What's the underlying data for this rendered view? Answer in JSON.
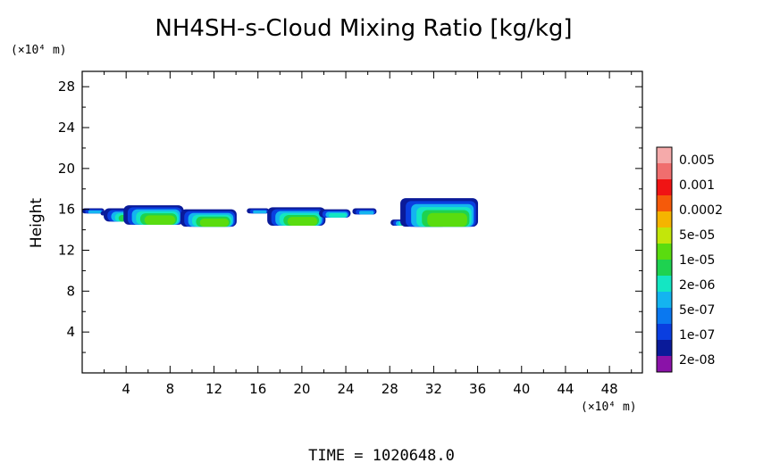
{
  "chart_data": {
    "type": "heatmap",
    "title": "NH4SH-s-Cloud Mixing Ratio [kg/kg]",
    "ylabel": "Height",
    "y_unit": "(×10⁴ m)",
    "x_unit": "(×10⁴ m)",
    "xlim": [
      0,
      51
    ],
    "ylim": [
      0,
      29.5
    ],
    "x_ticks": [
      4,
      8,
      12,
      16,
      20,
      24,
      28,
      32,
      36,
      40,
      44,
      48
    ],
    "y_ticks": [
      4,
      8,
      12,
      16,
      20,
      24,
      28
    ],
    "footer": "TIME = 1020648.0",
    "colorbar": {
      "colors": [
        "#8a12a8",
        "#0a1a99",
        "#0a3ee0",
        "#0a78f0",
        "#14b4f0",
        "#14e6c3",
        "#1ed250",
        "#5adc0f",
        "#c3e60a",
        "#f5b400",
        "#f55a0a",
        "#f01414",
        "#f06e6e",
        "#f5aaaa"
      ],
      "labels": [
        "2e-08",
        "1e-07",
        "5e-07",
        "2e-06",
        "1e-05",
        "5e-05",
        "0.0002",
        "0.001",
        "0.005"
      ]
    },
    "blobs": [
      {
        "x": 1.0,
        "y_bottom": 15.6,
        "y_top": 16.1,
        "peak": 1
      },
      {
        "x": 2.6,
        "y_bottom": 15.4,
        "y_top": 15.8,
        "peak": 1
      },
      {
        "x": 4.0,
        "y_bottom": 14.8,
        "y_top": 16.1,
        "peak": 3
      },
      {
        "x": 6.5,
        "y_bottom": 14.5,
        "y_top": 16.4,
        "peak": 4
      },
      {
        "x": 11.5,
        "y_bottom": 14.3,
        "y_top": 16.0,
        "peak": 4
      },
      {
        "x": 16.0,
        "y_bottom": 15.6,
        "y_top": 16.1,
        "peak": 1
      },
      {
        "x": 19.5,
        "y_bottom": 14.4,
        "y_top": 16.2,
        "peak": 4
      },
      {
        "x": 23.0,
        "y_bottom": 15.2,
        "y_top": 16.0,
        "peak": 2
      },
      {
        "x": 25.7,
        "y_bottom": 15.5,
        "y_top": 16.1,
        "peak": 1
      },
      {
        "x": 29.5,
        "y_bottom": 14.4,
        "y_top": 15.0,
        "peak": 3
      },
      {
        "x": 30.6,
        "y_bottom": 14.9,
        "y_top": 15.5,
        "peak": 3
      },
      {
        "x": 31.5,
        "y_bottom": 14.3,
        "y_top": 14.9,
        "peak": 4
      },
      {
        "x": 32.5,
        "y_bottom": 14.3,
        "y_top": 17.1,
        "peak": 4
      }
    ]
  }
}
